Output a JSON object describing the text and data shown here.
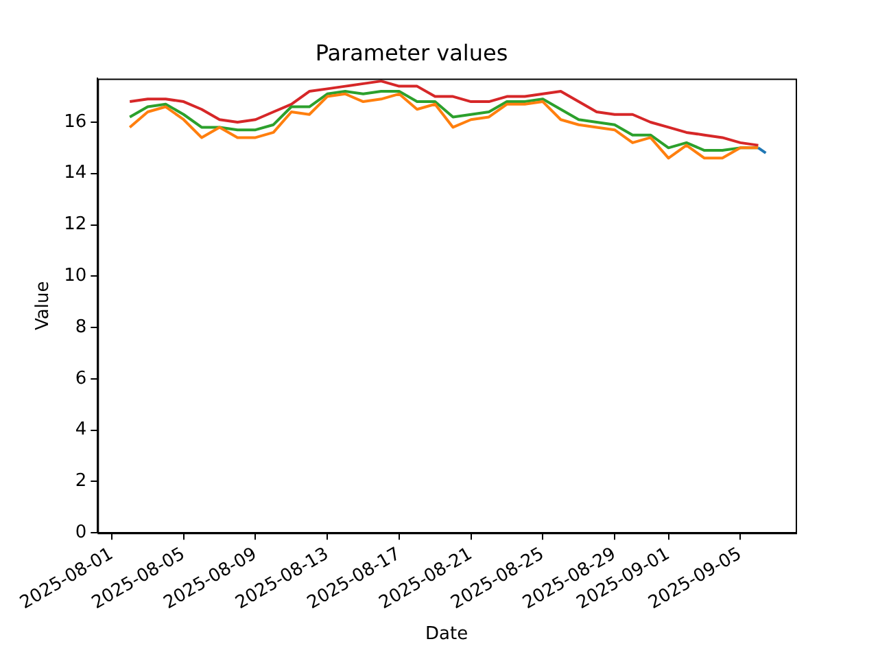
{
  "chart_data": {
    "type": "line",
    "title": "Parameter values",
    "xlabel": "Date",
    "ylabel": "Value",
    "xlim": [
      "2025-07-31T05:00",
      "2025-09-08T02:00"
    ],
    "xticks": [
      "2025-08-01",
      "2025-08-05",
      "2025-08-09",
      "2025-08-13",
      "2025-08-17",
      "2025-08-21",
      "2025-08-25",
      "2025-08-29",
      "2025-09-01",
      "2025-09-05"
    ],
    "ylim": [
      0,
      17.7
    ],
    "yticks": [
      0,
      2,
      4,
      6,
      8,
      10,
      12,
      14,
      16
    ],
    "grid": false,
    "legend": false,
    "marker": "none",
    "line_style": "solid",
    "x": [
      "2025-08-02",
      "2025-08-03",
      "2025-08-04",
      "2025-08-05",
      "2025-08-06",
      "2025-08-07",
      "2025-08-08",
      "2025-08-09",
      "2025-08-10",
      "2025-08-11",
      "2025-08-12",
      "2025-08-13",
      "2025-08-14",
      "2025-08-15",
      "2025-08-16",
      "2025-08-17",
      "2025-08-18",
      "2025-08-19",
      "2025-08-20",
      "2025-08-21",
      "2025-08-22",
      "2025-08-23",
      "2025-08-24",
      "2025-08-25",
      "2025-08-26",
      "2025-08-27",
      "2025-08-28",
      "2025-08-29",
      "2025-08-30",
      "2025-08-31",
      "2025-09-01",
      "2025-09-02",
      "2025-09-03",
      "2025-09-04",
      "2025-09-05",
      "2025-09-06"
    ],
    "series": [
      {
        "color": "#1f77b4",
        "x": [
          "2025-09-06",
          "2025-09-06T10:00"
        ],
        "values": [
          15.0,
          14.8
        ]
      },
      {
        "color": "#ff7f0e",
        "values": [
          15.8,
          16.4,
          16.6,
          16.1,
          15.4,
          15.8,
          15.4,
          15.4,
          15.6,
          16.4,
          16.3,
          17.0,
          17.1,
          16.8,
          16.9,
          17.1,
          16.5,
          16.7,
          15.8,
          16.1,
          16.2,
          16.7,
          16.7,
          16.8,
          16.1,
          15.9,
          15.8,
          15.7,
          15.2,
          15.4,
          14.6,
          15.1,
          14.6,
          14.6,
          15.0,
          15.0
        ]
      },
      {
        "color": "#2ca02c",
        "values": [
          16.2,
          16.6,
          16.7,
          16.3,
          15.8,
          15.8,
          15.7,
          15.7,
          15.9,
          16.6,
          16.6,
          17.1,
          17.2,
          17.1,
          17.2,
          17.2,
          16.8,
          16.8,
          16.2,
          16.3,
          16.4,
          16.8,
          16.8,
          16.9,
          16.5,
          16.1,
          16.0,
          15.9,
          15.5,
          15.5,
          15.0,
          15.2,
          14.9,
          14.9,
          15.0,
          15.0
        ]
      },
      {
        "color": "#d62728",
        "values": [
          16.8,
          16.9,
          16.9,
          16.8,
          16.5,
          16.1,
          16.0,
          16.1,
          16.4,
          16.7,
          17.2,
          17.3,
          17.4,
          17.5,
          17.6,
          17.4,
          17.4,
          17.0,
          17.0,
          16.8,
          16.8,
          17.0,
          17.0,
          17.1,
          17.2,
          16.8,
          16.4,
          16.3,
          16.3,
          16.0,
          15.8,
          15.6,
          15.5,
          15.4,
          15.2,
          15.1
        ]
      }
    ]
  }
}
